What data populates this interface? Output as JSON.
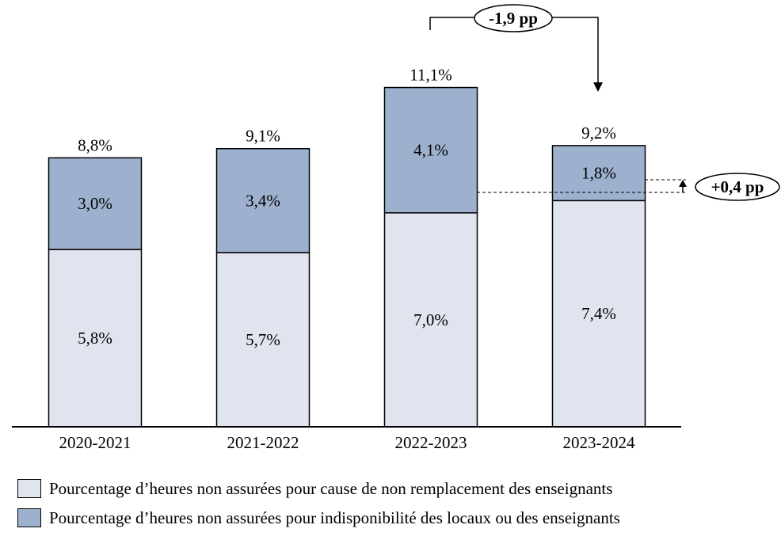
{
  "chart_data": {
    "type": "bar",
    "stacked": true,
    "categories": [
      "2020-2021",
      "2021-2022",
      "2022-2023",
      "2023-2024"
    ],
    "series": [
      {
        "name": "Pourcentage d’heures non assurées pour cause de non remplacement des enseignants",
        "values": [
          5.8,
          5.7,
          7.0,
          7.4
        ],
        "labels": [
          "5,8%",
          "5,7%",
          "7,0%",
          "7,4%"
        ],
        "color": "#dfe4ef"
      },
      {
        "name": "Pourcentage d’heures non assurées pour indisponibilité des locaux ou des enseignants",
        "values": [
          3.0,
          3.4,
          4.1,
          1.8
        ],
        "labels": [
          "3,0%",
          "3,4%",
          "4,1%",
          "1,8%"
        ],
        "color": "#9db0ce"
      }
    ],
    "totals": [
      8.8,
      9.1,
      11.1,
      9.2
    ],
    "total_labels": [
      "8,8%",
      "9,1%",
      "11,1%",
      "9,2%"
    ],
    "annotations": [
      {
        "text": "-1,9 pp",
        "from": "2022-2023",
        "to": "2023-2024",
        "target": "total"
      },
      {
        "text": "+0,4 pp",
        "from": "2022-2023",
        "to": "2023-2024",
        "target": "series 1"
      }
    ],
    "ylim": [
      0,
      11.6
    ],
    "grid": false,
    "legend_position": "bottom"
  }
}
